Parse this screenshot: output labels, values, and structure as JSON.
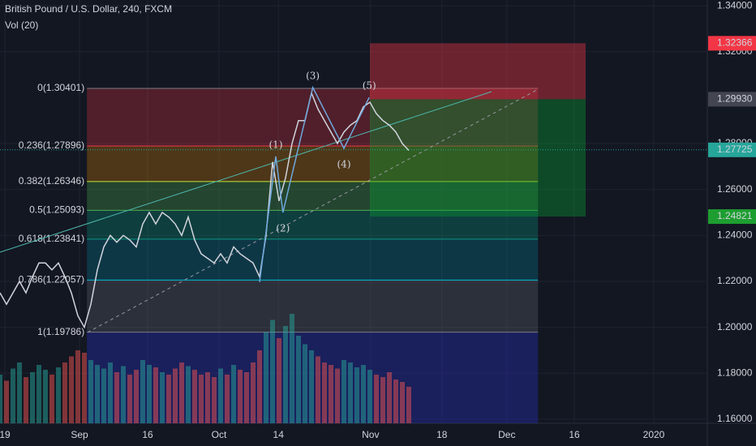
{
  "chart_data": {
    "type": "line",
    "title": "British Pound / U.S. Dollar, 240, FXCM",
    "subtitle": "Vol (20)",
    "xlim": [
      0,
      109
    ],
    "ylim": [
      1.1582,
      1.3425
    ],
    "xticks": [
      {
        "value": 0.75,
        "label": "19"
      },
      {
        "value": 12.25,
        "label": "Sep"
      },
      {
        "value": 22.75,
        "label": "16"
      },
      {
        "value": 33.75,
        "label": "Oct"
      },
      {
        "value": 42.9,
        "label": "14"
      },
      {
        "value": 57.1,
        "label": "Nov"
      },
      {
        "value": 68.1,
        "label": "18"
      },
      {
        "value": 78.1,
        "label": "Dec"
      },
      {
        "value": 88.5,
        "label": "16"
      },
      {
        "value": 100.75,
        "label": "2020"
      }
    ],
    "yticks": [
      {
        "value": 1.34,
        "label": "1.34000"
      },
      {
        "value": 1.32,
        "label": "1.32000"
      },
      {
        "value": 1.28,
        "label": "1.28000"
      },
      {
        "value": 1.26,
        "label": "1.26000"
      },
      {
        "value": 1.24,
        "label": "1.24000"
      },
      {
        "value": 1.22,
        "label": "1.22000"
      },
      {
        "value": 1.2,
        "label": "1.20000"
      },
      {
        "value": 1.18,
        "label": "1.18000"
      },
      {
        "value": 1.16,
        "label": "1.16000"
      }
    ],
    "grid": true,
    "x": [
      0,
      1,
      2,
      3,
      4,
      5,
      6,
      7,
      8,
      9,
      10,
      11,
      12,
      13,
      14,
      15,
      16,
      17,
      18,
      19,
      20,
      21,
      22,
      23,
      24,
      25,
      26,
      27,
      28,
      29,
      30,
      31,
      32,
      33,
      34,
      35,
      36,
      37,
      38,
      39,
      40,
      41,
      42,
      43,
      44,
      45,
      46,
      47,
      48,
      49,
      50,
      51,
      52,
      53,
      54,
      55,
      56,
      57,
      58,
      59,
      60,
      61,
      62,
      63
    ],
    "series": [
      {
        "name": "close",
        "color": "#d1d4dc",
        "values": [
          1.215,
          1.21,
          1.215,
          1.22,
          1.215,
          1.222,
          1.228,
          1.228,
          1.225,
          1.228,
          1.222,
          1.215,
          1.205,
          1.2,
          1.21,
          1.225,
          1.235,
          1.24,
          1.237,
          1.24,
          1.238,
          1.235,
          1.245,
          1.25,
          1.245,
          1.25,
          1.248,
          1.245,
          1.24,
          1.248,
          1.238,
          1.232,
          1.23,
          1.228,
          1.232,
          1.228,
          1.235,
          1.232,
          1.23,
          1.228,
          1.222,
          1.24,
          1.272,
          1.255,
          1.265,
          1.28,
          1.29,
          1.29,
          1.302,
          1.295,
          1.29,
          1.285,
          1.28,
          1.285,
          1.288,
          1.29,
          1.296,
          1.298,
          1.293,
          1.29,
          1.288,
          1.285,
          1.28,
          1.277
        ]
      }
    ],
    "volume": {
      "vlim": [
        0,
        100
      ],
      "up_color": "#26a69a",
      "down_color": "#ef5350",
      "values": [
        40,
        35,
        45,
        50,
        38,
        42,
        48,
        44,
        40,
        46,
        50,
        55,
        60,
        58,
        52,
        48,
        45,
        50,
        42,
        47,
        40,
        44,
        52,
        48,
        46,
        42,
        40,
        45,
        50,
        47,
        44,
        40,
        42,
        38,
        45,
        40,
        48,
        44,
        42,
        50,
        60,
        75,
        85,
        70,
        80,
        90,
        72,
        65,
        60,
        55,
        50,
        48,
        45,
        52,
        50,
        46,
        48,
        44,
        40,
        38,
        42,
        36,
        34,
        30
      ]
    },
    "fib": [
      {
        "label": "0(1.30401)",
        "price": 1.30401,
        "color": "#787b86",
        "fill": "rgba(242,54,69,0.28)"
      },
      {
        "label": "0.236(1.27896)",
        "price": 1.27896,
        "color": "#f23645",
        "fill": "rgba(255,152,0,0.25)"
      },
      {
        "label": "0.382(1.26346)",
        "price": 1.26346,
        "color": "#c5e53c",
        "fill": "rgba(76,175,80,0.3)"
      },
      {
        "label": "0.5(1.25093)",
        "price": 1.25093,
        "color": "#4caf50",
        "fill": "rgba(8,153,129,0.3)"
      },
      {
        "label": "0.618(1.23841)",
        "price": 1.23841,
        "color": "#089981",
        "fill": "rgba(0,150,180,0.25)"
      },
      {
        "label": "0.786(1.22057)",
        "price": 1.22057,
        "color": "#00bcd4",
        "fill": "rgba(120,123,134,0.25)"
      },
      {
        "label": "1(1.19786)",
        "price": 1.19786,
        "color": "#787b86",
        "fill": "rgba(40,50,200,0.35)"
      }
    ],
    "fib_x": [
      13.4,
      82.9
    ],
    "waves": {
      "labels": [
        null,
        "(1)",
        "(2)",
        "(3)",
        "(4)",
        "(5)"
      ],
      "x": [
        40,
        42.5,
        43.6,
        48.2,
        53,
        56.9
      ],
      "prices": [
        1.2197,
        1.2744,
        1.25,
        1.3044,
        1.2779,
        1.3001
      ],
      "color": "#6fa8dc"
    },
    "trend_lines": [
      {
        "x": [
          0,
          75.75
        ],
        "prices": [
          1.2327,
          1.3026
        ],
        "color": "#4db6ac",
        "dashed": false
      },
      {
        "x": [
          13.5,
          82.9
        ],
        "prices": [
          1.1978,
          1.3036
        ],
        "color": "#9598a1",
        "dashed": true
      }
    ],
    "position": {
      "x": [
        57,
        90.25
      ],
      "stop": 1.32366,
      "entry": 1.2993,
      "target": 1.24821
    },
    "price_labels": [
      {
        "value": 1.32366,
        "label": "1.32366",
        "color": "#f23645"
      },
      {
        "value": 1.2993,
        "label": "1.29930",
        "color": "#434651"
      },
      {
        "value": 1.27725,
        "label": "1.27725",
        "color": "#26a69a"
      },
      {
        "value": 1.24821,
        "label": "1.24821",
        "color": "#1e9e30"
      }
    ]
  }
}
